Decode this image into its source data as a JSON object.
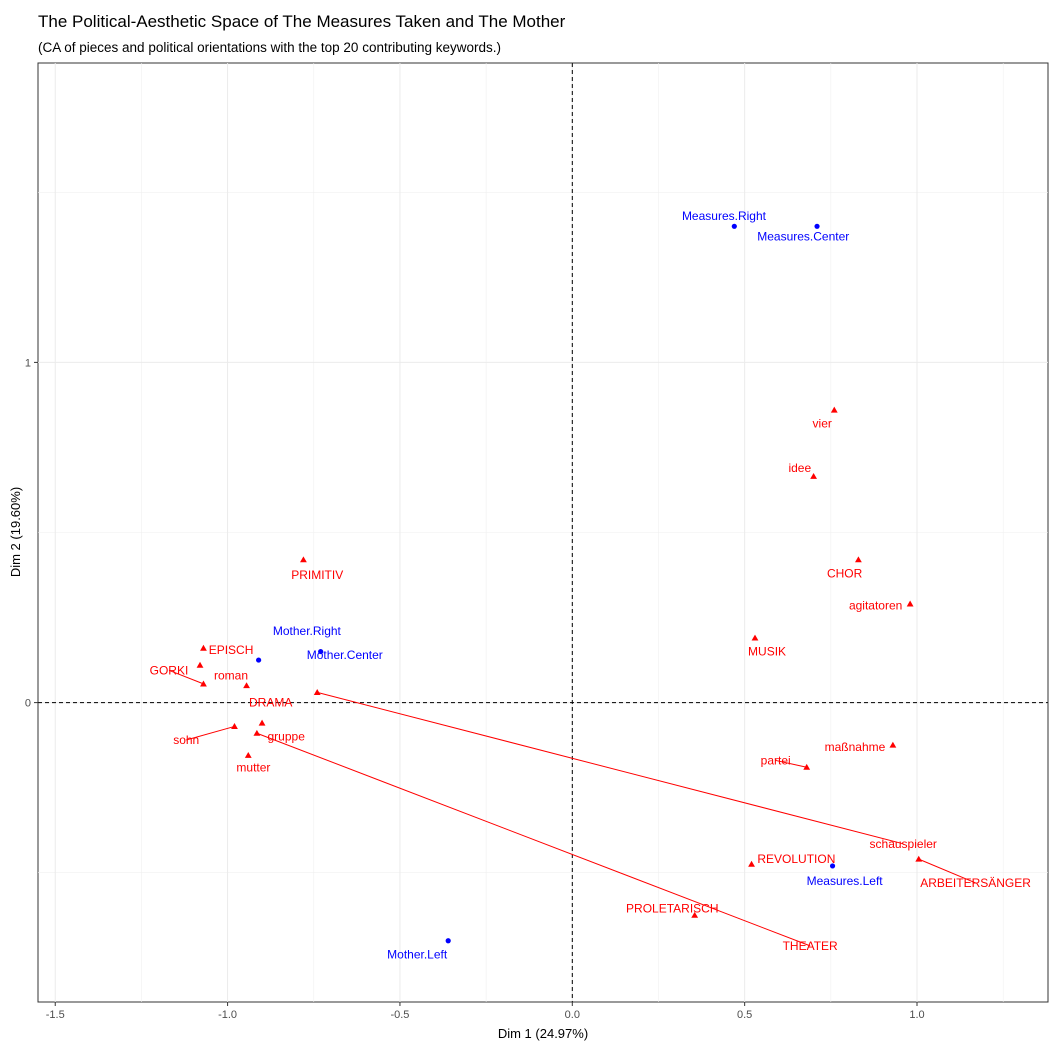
{
  "title": "The Political-Aesthetic Space of The Measures Taken and The Mother",
  "subtitle": "(CA of pieces and political orientations with the top 20 contributing keywords.)",
  "chart_data": {
    "type": "scatter",
    "xlabel": "Dim 1 (24.97%)",
    "ylabel": "Dim 2 (19.60%)",
    "xlim": [
      -1.55,
      1.38
    ],
    "ylim": [
      -0.88,
      1.88
    ],
    "x_ticks": [
      -1.5,
      -1.0,
      -0.5,
      0.0,
      0.5,
      1.0
    ],
    "x_tick_labels": [
      "-1.5",
      "-1.0",
      "-0.5",
      "0.0",
      "0.5",
      "1.0"
    ],
    "y_ticks": [
      0,
      1
    ],
    "y_tick_labels": [
      "0",
      "1"
    ],
    "reference_lines": {
      "x": 0,
      "y": 0,
      "style": "dashed"
    },
    "grid": true,
    "colors": {
      "pieces": "#0000ff",
      "keywords": "#ff0000"
    },
    "series": [
      {
        "marker": "circle",
        "color": "#0000ff",
        "points": [
          {
            "label": "Measures.Right",
            "x": 0.47,
            "y": 1.4,
            "lx": 0.44,
            "ly": 1.43
          },
          {
            "label": "Measures.Center",
            "x": 0.71,
            "y": 1.4,
            "lx": 0.67,
            "ly": 1.37
          },
          {
            "label": "Mother.Right",
            "x": -0.73,
            "y": 0.15,
            "lx": -0.77,
            "ly": 0.21
          },
          {
            "label": "Mother.Center",
            "x": -0.91,
            "y": 0.125,
            "lx": -0.66,
            "ly": 0.14
          },
          {
            "label": "Measures.Left",
            "x": 0.755,
            "y": -0.48,
            "lx": 0.79,
            "ly": -0.525
          },
          {
            "label": "Mother.Left",
            "x": -0.36,
            "y": -0.7,
            "lx": -0.45,
            "ly": -0.74
          }
        ]
      },
      {
        "marker": "triangle",
        "color": "#ff0000",
        "points": [
          {
            "label": "vier",
            "x": 0.76,
            "y": 0.86,
            "lx": 0.725,
            "ly": 0.82
          },
          {
            "label": "idee",
            "x": 0.7,
            "y": 0.665,
            "lx": 0.66,
            "ly": 0.69
          },
          {
            "label": "CHOR",
            "x": 0.83,
            "y": 0.42,
            "lx": 0.79,
            "ly": 0.38
          },
          {
            "label": "agitatoren",
            "x": 0.98,
            "y": 0.29,
            "lx": 0.88,
            "ly": 0.285
          },
          {
            "label": "MUSIK",
            "x": 0.53,
            "y": 0.19,
            "lx": 0.565,
            "ly": 0.15
          },
          {
            "label": "PRIMITIV",
            "x": -0.78,
            "y": 0.42,
            "lx": -0.74,
            "ly": 0.375
          },
          {
            "label": "EPISCH",
            "x": -1.07,
            "y": 0.16,
            "lx": -0.99,
            "ly": 0.155
          },
          {
            "label": "GORKI",
            "x": -1.07,
            "y": 0.055,
            "lx": -1.17,
            "ly": 0.095,
            "line": true
          },
          {
            "label": "roman",
            "x": -1.08,
            "y": 0.11,
            "lx": -0.99,
            "ly": 0.08
          },
          {
            "label": "DRAMA",
            "x": -0.945,
            "y": 0.05,
            "lx": -0.875,
            "ly": 0.0
          },
          {
            "label": "sohn",
            "x": -0.98,
            "y": -0.07,
            "lx": -1.12,
            "ly": -0.11,
            "line": true
          },
          {
            "label": "gruppe",
            "x": -0.9,
            "y": -0.06,
            "lx": -0.83,
            "ly": -0.1
          },
          {
            "label": "mutter",
            "x": -0.94,
            "y": -0.155,
            "lx": -0.925,
            "ly": -0.19
          },
          {
            "label": "partei",
            "x": 0.68,
            "y": -0.19,
            "lx": 0.59,
            "ly": -0.17,
            "line": true
          },
          {
            "label": "maßnahme",
            "x": 0.93,
            "y": -0.125,
            "lx": 0.82,
            "ly": -0.13
          },
          {
            "label": "schauspieler",
            "x": -0.74,
            "y": 0.03,
            "lx": 0.96,
            "ly": -0.415,
            "line": true
          },
          {
            "label": "REVOLUTION",
            "x": 0.52,
            "y": -0.475,
            "lx": 0.65,
            "ly": -0.46
          },
          {
            "label": "ARBEITERSÄNGER",
            "x": 1.005,
            "y": -0.46,
            "lx": 1.17,
            "ly": -0.53,
            "line": true
          },
          {
            "label": "PROLETARISCH",
            "x": 0.355,
            "y": -0.625,
            "lx": 0.29,
            "ly": -0.605
          },
          {
            "label": "THEATER",
            "x": -0.915,
            "y": -0.09,
            "lx": 0.69,
            "ly": -0.715,
            "line": true
          }
        ]
      }
    ]
  }
}
